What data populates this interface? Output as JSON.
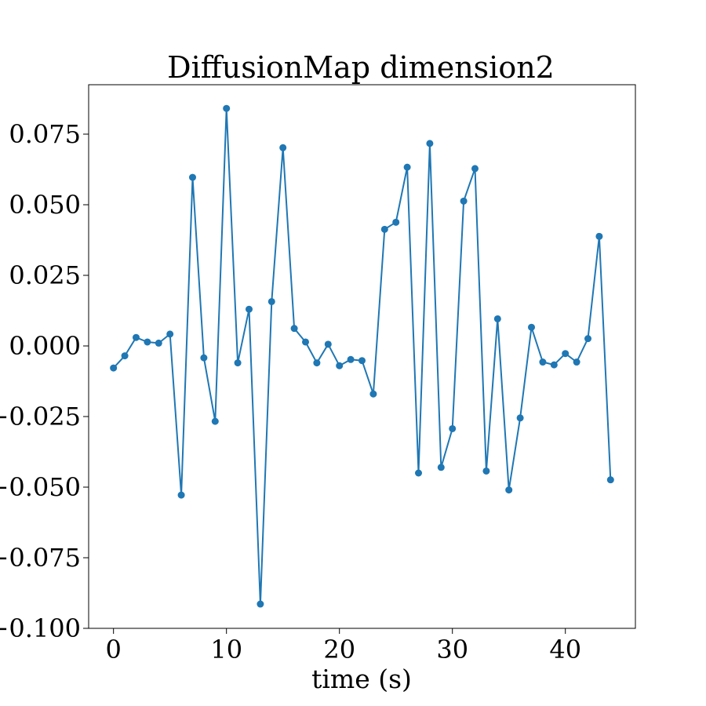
{
  "chart_data": {
    "type": "line",
    "title": "DiffusionMap dimension2",
    "xlabel": "time (s)",
    "ylabel": "",
    "xlim": [
      -2.2,
      46.2
    ],
    "ylim": [
      -0.1,
      0.0925
    ],
    "xticks": [
      0,
      10,
      20,
      30,
      40
    ],
    "xtick_labels": [
      "0",
      "10",
      "20",
      "30",
      "40"
    ],
    "yticks": [
      -0.1,
      -0.075,
      -0.05,
      -0.025,
      0.0,
      0.025,
      0.05,
      0.075
    ],
    "ytick_labels": [
      "−0.100",
      "−0.075",
      "−0.050",
      "−0.025",
      "0.000",
      "0.025",
      "0.050",
      "0.075"
    ],
    "grid": false,
    "legend": "none",
    "series_color": "#1f77b4",
    "x": [
      0,
      1,
      2,
      3,
      4,
      5,
      6,
      7,
      8,
      9,
      10,
      11,
      12,
      13,
      14,
      15,
      16,
      17,
      18,
      19,
      20,
      21,
      22,
      23,
      24,
      25,
      26,
      27,
      28,
      29,
      30,
      31,
      32,
      33,
      34,
      35,
      36,
      37,
      38,
      39,
      40,
      41,
      42,
      43,
      44
    ],
    "values": [
      -0.0078,
      -0.0035,
      0.003,
      0.0014,
      0.001,
      0.0042,
      -0.0528,
      0.0597,
      -0.0042,
      -0.0267,
      0.0841,
      -0.006,
      0.013,
      -0.0914,
      0.0157,
      0.0702,
      0.0062,
      0.0014,
      -0.006,
      0.0006,
      -0.007,
      -0.0048,
      -0.0052,
      -0.017,
      0.0413,
      0.0438,
      0.0633,
      -0.045,
      0.0717,
      -0.043,
      -0.0293,
      0.0513,
      0.0628,
      -0.0443,
      0.0096,
      -0.051,
      -0.0255,
      0.0066,
      -0.0057,
      -0.0067,
      -0.0027,
      -0.0057,
      0.0026,
      0.0388,
      -0.0474
    ]
  }
}
